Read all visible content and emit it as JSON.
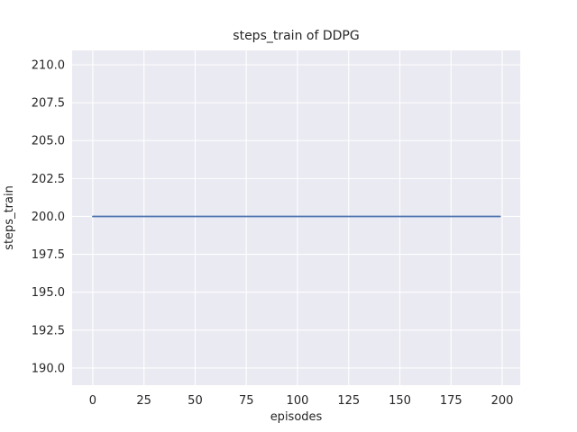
{
  "chart_data": {
    "type": "line",
    "title": "steps_train of DDPG",
    "xlabel": "episodes",
    "ylabel": "steps_train",
    "series": [
      {
        "name": "steps_train",
        "description": "constant line: steps_train = 200 for every episode 0..199",
        "points": [
          [
            0,
            200
          ],
          [
            199,
            200
          ]
        ],
        "constant_value": 200,
        "color": "#4c72b0"
      }
    ],
    "xlim": [
      -10.1,
      208.8
    ],
    "ylim": [
      188.87,
      210.95
    ],
    "xticks": [
      0,
      25,
      50,
      75,
      100,
      125,
      150,
      175,
      200
    ],
    "xtick_labels": [
      "0",
      "25",
      "50",
      "75",
      "100",
      "125",
      "150",
      "175",
      "200"
    ],
    "yticks": [
      190.0,
      192.5,
      195.0,
      197.5,
      200.0,
      202.5,
      205.0,
      207.5,
      210.0
    ],
    "ytick_labels": [
      "190.0",
      "192.5",
      "195.0",
      "197.5",
      "200.0",
      "202.5",
      "205.0",
      "207.5",
      "210.0"
    ],
    "grid": true,
    "legend_position": "none",
    "style": {
      "figure_bg": "#ffffff",
      "plot_bg": "#eaeaf2",
      "grid_color": "#ffffff",
      "text_color": "#262626",
      "line_width": 1.8,
      "grid_width": 1.1
    }
  }
}
